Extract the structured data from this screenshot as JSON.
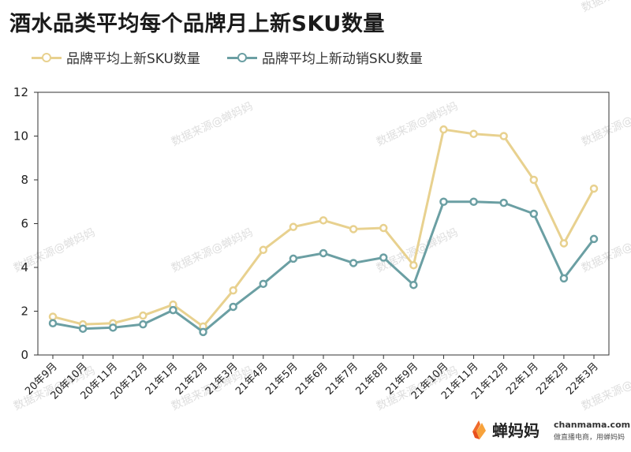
{
  "title": "酒水品类平均每个品牌月上新SKU数量",
  "chart_data": {
    "type": "line",
    "categories": [
      "20年9月",
      "20年10月",
      "20年11月",
      "20年12月",
      "21年1月",
      "21年2月",
      "21年3月",
      "21年4月",
      "21年5月",
      "21年6月",
      "21年7月",
      "21年8月",
      "21年9月",
      "21年10月",
      "21年11月",
      "21年12月",
      "22年1月",
      "22年2月",
      "22年3月"
    ],
    "series": [
      {
        "name": "品牌平均上新SKU数量",
        "color": "#e8d18f",
        "values": [
          1.75,
          1.4,
          1.45,
          1.8,
          2.3,
          1.3,
          2.95,
          4.8,
          5.85,
          6.15,
          5.75,
          5.8,
          4.1,
          10.3,
          10.1,
          10.0,
          8.0,
          5.1,
          7.6
        ]
      },
      {
        "name": "品牌平均上新动销SKU数量",
        "color": "#6b9fa3",
        "values": [
          1.45,
          1.2,
          1.25,
          1.4,
          2.05,
          1.05,
          2.2,
          3.25,
          4.4,
          4.65,
          4.2,
          4.45,
          3.2,
          7.0,
          7.0,
          6.95,
          6.45,
          3.5,
          5.3
        ]
      }
    ],
    "ylim": [
      0,
      12
    ],
    "yticks": [
      0,
      2,
      4,
      6,
      8,
      10,
      12
    ],
    "grid": false,
    "legend": "top-left"
  },
  "watermark": "数据来源@蝉妈妈",
  "brand": {
    "name": "蝉妈妈",
    "url": "chanmama.com",
    "slogan": "做直播电商，用蝉妈妈"
  }
}
